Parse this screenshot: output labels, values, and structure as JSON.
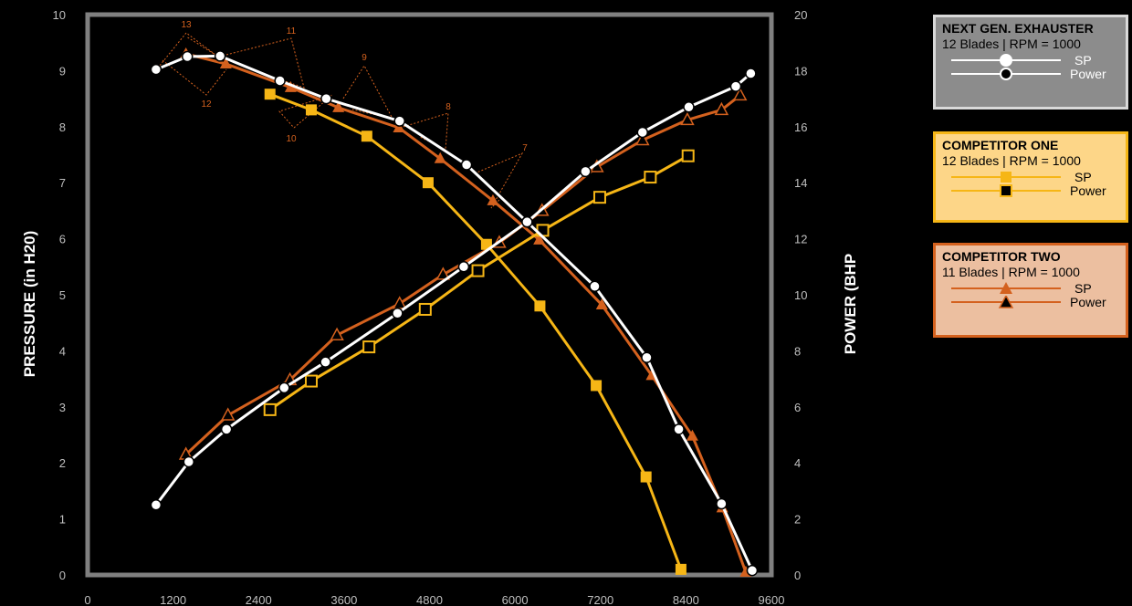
{
  "chart_data": {
    "type": "line",
    "xlim": [
      0,
      9600
    ],
    "y_left": {
      "label": "PRESSURE (in H20)",
      "lim": [
        0,
        10
      ],
      "ticks": [
        "0",
        "1",
        "2",
        "3",
        "4",
        "5",
        "6",
        "7",
        "8",
        "9",
        "10"
      ]
    },
    "y_right": {
      "label": "POWER (BHP",
      "lim": [
        0,
        20
      ],
      "ticks": [
        "0",
        "2",
        "4",
        "6",
        "8",
        "10",
        "12",
        "14",
        "16",
        "18",
        "20"
      ]
    },
    "x_ticks": [
      "0",
      "1200",
      "2400",
      "3600",
      "4800",
      "6000",
      "7200",
      "8400",
      "9600"
    ],
    "colors": {
      "next_gen": "#ffffff",
      "competitor_one": "#f6b616",
      "competitor_two": "#d4611e",
      "plot_border": "#808080",
      "background": "#000000"
    },
    "series": [
      {
        "name": "SP",
        "group": "NEXT GEN. EXHAUSTER",
        "axis": "left",
        "color": "#ffffff",
        "marker": "circle-open",
        "x": [
          960,
          1400,
          1860,
          2700,
          3350,
          4380,
          5320,
          6170,
          7120,
          7850,
          8300,
          8900,
          9330
        ],
        "y": [
          9.02,
          9.25,
          9.26,
          8.82,
          8.5,
          8.1,
          7.32,
          6.3,
          5.15,
          3.88,
          2.6,
          1.27,
          0.08
        ]
      },
      {
        "name": "Power",
        "group": "NEXT GEN. EXHAUSTER",
        "axis": "right",
        "color": "#ffffff",
        "marker": "circle-open",
        "x": [
          960,
          1420,
          1950,
          2760,
          3340,
          4350,
          5280,
          6170,
          6990,
          7790,
          8440,
          9100,
          9310
        ],
        "y": [
          2.5,
          4.04,
          5.2,
          6.68,
          7.6,
          9.34,
          11.0,
          12.6,
          14.4,
          15.8,
          16.7,
          17.44,
          17.9
        ]
      },
      {
        "name": "SP",
        "group": "COMPETITOR ONE",
        "axis": "left",
        "color": "#f6b616",
        "marker": "square-filled",
        "x": [
          2560,
          3140,
          3920,
          4780,
          5600,
          6350,
          7140,
          7840,
          8330
        ],
        "y": [
          8.58,
          8.3,
          7.83,
          7.0,
          5.9,
          4.8,
          3.38,
          1.75,
          0.1
        ]
      },
      {
        "name": "Power",
        "group": "COMPETITOR ONE",
        "axis": "right",
        "color": "#f6b616",
        "marker": "square-open",
        "x": [
          2560,
          3140,
          3950,
          4740,
          5480,
          6390,
          7190,
          7900,
          8430
        ],
        "y": [
          5.9,
          6.92,
          8.14,
          9.48,
          10.86,
          12.3,
          13.48,
          14.2,
          14.96
        ]
      },
      {
        "name": "SP",
        "group": "COMPETITOR TWO",
        "axis": "left",
        "color": "#d4611e",
        "marker": "triangle-filled",
        "x": [
          1380,
          1940,
          2850,
          3520,
          4370,
          4950,
          5690,
          6340,
          7220,
          7920,
          8490,
          8910,
          9240
        ],
        "y": [
          9.3,
          9.12,
          8.7,
          8.34,
          7.98,
          7.43,
          6.68,
          5.98,
          4.82,
          3.56,
          2.48,
          1.2,
          0.05
        ]
      },
      {
        "name": "Power",
        "group": "COMPETITOR TWO",
        "axis": "right",
        "color": "#d4611e",
        "marker": "triangle-open",
        "x": [
          1380,
          1970,
          2840,
          3500,
          4380,
          4990,
          5780,
          6380,
          7150,
          7790,
          8420,
          8900,
          9160
        ],
        "y": [
          4.3,
          5.7,
          6.96,
          8.56,
          9.68,
          10.72,
          11.86,
          13.0,
          14.56,
          15.52,
          16.24,
          16.6,
          17.12
        ]
      }
    ],
    "annotations": [
      "13",
      "12",
      "11",
      "10",
      "9",
      "8",
      "7"
    ]
  },
  "legends": [
    {
      "title": "NEXT GEN. EXHAUSTER",
      "subtitle": "12 Blades  |  RPM  =  1000",
      "sp_label": "SP",
      "power_label": "Power"
    },
    {
      "title": "COMPETITOR ONE",
      "subtitle": "12 Blades  |  RPM  =  1000",
      "sp_label": "SP",
      "power_label": "Power"
    },
    {
      "title": "COMPETITOR TWO",
      "subtitle": "11 Blades  |  RPM  =  1000",
      "sp_label": "SP",
      "power_label": "Power"
    }
  ]
}
